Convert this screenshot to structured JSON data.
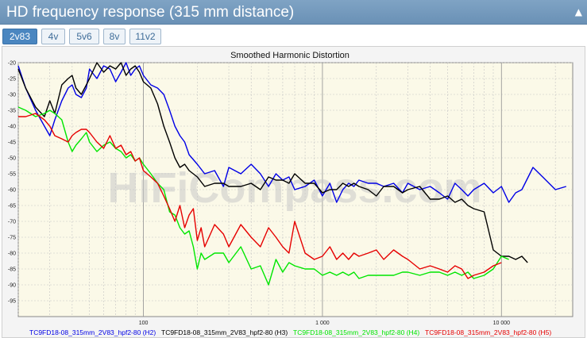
{
  "header": {
    "title": "HD frequency response (315 mm distance)",
    "collapse_icon": "caret-up-icon"
  },
  "tabs": [
    {
      "label": "2v83",
      "active": true
    },
    {
      "label": "4v",
      "active": false
    },
    {
      "label": "5v6",
      "active": false
    },
    {
      "label": "8v",
      "active": false
    },
    {
      "label": "11v2",
      "active": false
    }
  ],
  "watermark": "HiFiCompass.com",
  "chart_data": {
    "type": "line",
    "title": "Smoothed Harmonic Distortion",
    "x_scale": "log",
    "xlim": [
      20,
      25000
    ],
    "ylim": [
      -100,
      -20
    ],
    "y_ticks": [
      -20,
      -25,
      -30,
      -35,
      -40,
      -45,
      -50,
      -55,
      -60,
      -65,
      -70,
      -75,
      -80,
      -85,
      -90,
      -95
    ],
    "x_tick_labels": [
      {
        "value": 100,
        "label": "100"
      },
      {
        "value": 1000,
        "label": "1 000"
      },
      {
        "value": 10000,
        "label": "10 000"
      }
    ],
    "grid": true,
    "legend_position": "bottom",
    "background_color": "#fbf9e8",
    "series": [
      {
        "name": "TC9FD18-08_315mm_2V83_hpf2-80 (H2)",
        "color": "#0000e6",
        "x": [
          20,
          22,
          25,
          28,
          30,
          32,
          35,
          38,
          40,
          42,
          45,
          48,
          50,
          55,
          60,
          65,
          70,
          75,
          80,
          85,
          90,
          95,
          100,
          110,
          120,
          130,
          140,
          150,
          160,
          170,
          180,
          200,
          220,
          250,
          280,
          300,
          350,
          400,
          450,
          500,
          550,
          600,
          650,
          700,
          800,
          900,
          1000,
          1100,
          1200,
          1300,
          1400,
          1500,
          1600,
          1800,
          2000,
          2200,
          2500,
          2800,
          3000,
          3500,
          4000,
          4500,
          5000,
          5500,
          6000,
          6500,
          7000,
          8000,
          9000,
          10000,
          11000,
          12000,
          13000,
          15000,
          17000,
          20000,
          23000
        ],
        "values": [
          -21,
          -28,
          -35,
          -40,
          -43,
          -38,
          -32,
          -28,
          -27,
          -30,
          -31,
          -28,
          -22,
          -25,
          -21,
          -22,
          -26,
          -23,
          -20,
          -24,
          -22,
          -21,
          -24,
          -27,
          -28,
          -30,
          -35,
          -40,
          -43,
          -45,
          -49,
          -52,
          -55,
          -54,
          -59,
          -53,
          -55,
          -52,
          -55,
          -59,
          -55,
          -57,
          -56,
          -60,
          -59,
          -57,
          -62,
          -58,
          -64,
          -60,
          -58,
          -59,
          -57,
          -58,
          -58,
          -59,
          -58,
          -61,
          -58,
          -60,
          -59,
          -61,
          -63,
          -58,
          -60,
          -62,
          -60,
          -58,
          -61,
          -59,
          -64,
          -61,
          -60,
          -53,
          -56,
          -60,
          -59
        ]
      },
      {
        "name": "TC9FD18-08_315mm_2V83_hpf2-80 (H3)",
        "color": "#000000",
        "x": [
          20,
          22,
          25,
          28,
          30,
          32,
          35,
          38,
          40,
          42,
          45,
          48,
          50,
          55,
          60,
          65,
          70,
          75,
          80,
          85,
          90,
          95,
          100,
          110,
          120,
          130,
          140,
          150,
          160,
          170,
          180,
          200,
          220,
          250,
          280,
          300,
          350,
          400,
          450,
          500,
          550,
          600,
          650,
          700,
          800,
          900,
          1000,
          1100,
          1200,
          1300,
          1400,
          1500,
          1600,
          1800,
          2000,
          2200,
          2500,
          2800,
          3000,
          3500,
          4000,
          4500,
          5000,
          5500,
          6000,
          6500,
          7000,
          8000,
          9000,
          10000,
          11000,
          12000,
          13000,
          14000
        ],
        "values": [
          -22,
          -28,
          -34,
          -37,
          -32,
          -36,
          -27,
          -25,
          -24,
          -28,
          -30,
          -27,
          -25,
          -20,
          -23,
          -21,
          -22,
          -20,
          -24,
          -22,
          -21,
          -23,
          -26,
          -28,
          -33,
          -40,
          -45,
          -50,
          -53,
          -52,
          -54,
          -56,
          -59,
          -58,
          -58,
          -59,
          -59,
          -58,
          -60,
          -56,
          -57,
          -57,
          -58,
          -55,
          -58,
          -58,
          -61,
          -60,
          -60,
          -58,
          -59,
          -58,
          -59,
          -60,
          -62,
          -59,
          -59,
          -61,
          -60,
          -59,
          -63,
          -63,
          -62,
          -64,
          -63,
          -65,
          -66,
          -67,
          -79,
          -81,
          -81,
          -82,
          -81,
          -83
        ]
      },
      {
        "name": "TC9FD18-08_315mm_2V83_hpf2-80 (H4)",
        "color": "#00e600",
        "x": [
          20,
          22,
          25,
          28,
          30,
          32,
          35,
          38,
          40,
          42,
          45,
          48,
          50,
          55,
          60,
          65,
          70,
          75,
          80,
          85,
          90,
          95,
          100,
          110,
          120,
          130,
          140,
          150,
          160,
          170,
          180,
          190,
          200,
          210,
          220,
          250,
          280,
          300,
          350,
          400,
          450,
          500,
          550,
          600,
          650,
          700,
          800,
          900,
          1000,
          1100,
          1200,
          1300,
          1400,
          1500,
          1600,
          1800,
          2000,
          2200,
          2500,
          2800,
          3000,
          3500,
          4000,
          4500,
          5000,
          5500,
          6000,
          6500,
          7000,
          8000,
          9000,
          10000,
          11000
        ],
        "values": [
          -34,
          -35,
          -37,
          -36,
          -35,
          -36,
          -38,
          -45,
          -48,
          -46,
          -44,
          -42,
          -45,
          -48,
          -46,
          -45,
          -47,
          -48,
          -50,
          -49,
          -51,
          -50,
          -52,
          -55,
          -58,
          -60,
          -67,
          -68,
          -72,
          -74,
          -73,
          -78,
          -85,
          -80,
          -82,
          -80,
          -80,
          -83,
          -78,
          -85,
          -84,
          -90,
          -82,
          -86,
          -83,
          -84,
          -85,
          -85,
          -87,
          -86,
          -87,
          -86,
          -87,
          -86,
          -88,
          -87,
          -87,
          -87,
          -87,
          -86,
          -86,
          -87,
          -86,
          -86,
          -87,
          -86,
          -87,
          -86,
          -88,
          -87,
          -85,
          -81,
          -82
        ]
      },
      {
        "name": "TC9FD18-08_315mm_2V83_hpf2-80 (H5)",
        "color": "#e60000",
        "x": [
          20,
          22,
          25,
          28,
          30,
          32,
          35,
          38,
          40,
          42,
          45,
          48,
          50,
          55,
          60,
          65,
          70,
          75,
          80,
          85,
          90,
          95,
          100,
          110,
          120,
          130,
          140,
          150,
          160,
          170,
          180,
          190,
          200,
          210,
          220,
          250,
          280,
          300,
          350,
          400,
          450,
          500,
          550,
          600,
          650,
          700,
          800,
          900,
          1000,
          1100,
          1200,
          1300,
          1400,
          1500,
          1600,
          1800,
          2000,
          2200,
          2500,
          2800,
          3000,
          3500,
          4000,
          4500,
          5000,
          5500,
          6000,
          6500,
          7000,
          8000,
          9000,
          10000
        ],
        "values": [
          -37,
          -37,
          -36,
          -38,
          -40,
          -43,
          -44,
          -45,
          -43,
          -42,
          -41,
          -41,
          -42,
          -45,
          -47,
          -43,
          -47,
          -46,
          -49,
          -48,
          -51,
          -50,
          -54,
          -56,
          -58,
          -62,
          -66,
          -70,
          -65,
          -72,
          -68,
          -66,
          -76,
          -72,
          -78,
          -71,
          -74,
          -78,
          -71,
          -75,
          -78,
          -72,
          -75,
          -78,
          -80,
          -70,
          -80,
          -82,
          -81,
          -78,
          -82,
          -80,
          -82,
          -80,
          -81,
          -80,
          -79,
          -82,
          -79,
          -81,
          -82,
          -85,
          -84,
          -85,
          -86,
          -84,
          -85,
          -88,
          -87,
          -86,
          -84,
          -83
        ]
      }
    ]
  }
}
